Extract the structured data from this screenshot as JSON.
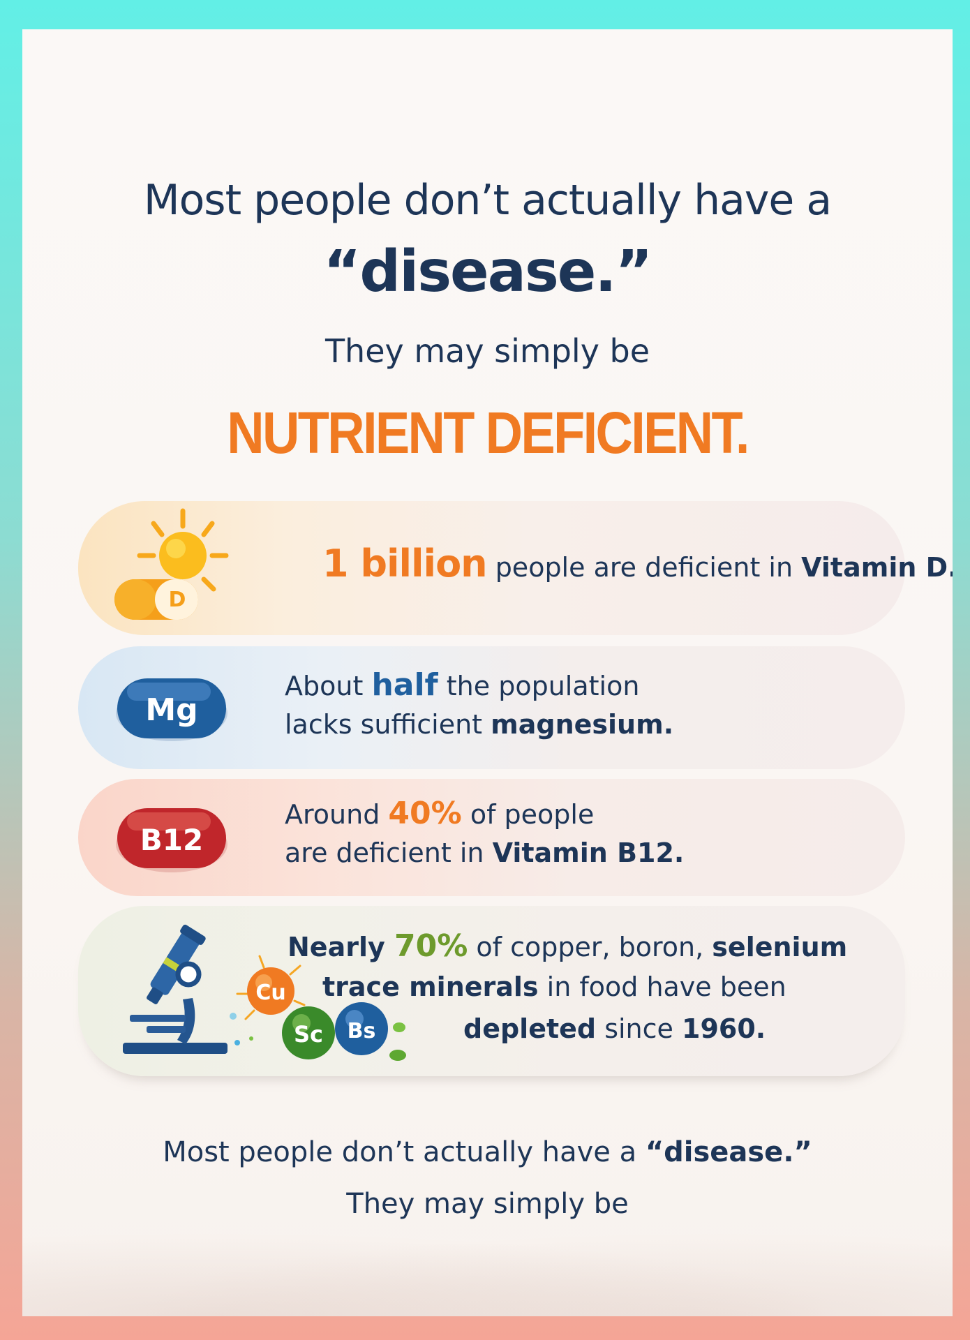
{
  "header": {
    "line1": "Most people don’t actually have a",
    "line2": "“disease.”",
    "line3": "They may simply be",
    "line4": "NUTRIENT DEFICIENT."
  },
  "facts": [
    {
      "icon": "sun-vitamin-d-capsule-icon",
      "badge": "D",
      "parts": [
        "1 billion",
        " people are deficient in ",
        "Vitamin D."
      ]
    },
    {
      "icon": "magnesium-pill-icon",
      "badge": "Mg",
      "line1": [
        "About ",
        "half",
        " the population"
      ],
      "line2": [
        "lacks sufficient ",
        "magnesium."
      ]
    },
    {
      "icon": "b12-pill-icon",
      "badge": "B12",
      "line1": [
        "Around ",
        "40%",
        " of people"
      ],
      "line2": [
        "are deficient in ",
        "Vitamin B12."
      ]
    },
    {
      "icon": "microscope-icon",
      "badges": [
        "Cu",
        "Sc",
        "Bs"
      ],
      "line1": [
        "Nearly ",
        "70%",
        " of copper, boron, ",
        "selenium"
      ],
      "line2": [
        "trace minerals",
        " in food have been"
      ],
      "line3": [
        "depleted",
        " since ",
        "1960."
      ]
    }
  ],
  "footer": {
    "line1_a": "Most people don’t actually have a ",
    "line1_b": "“disease.”",
    "line2": "They may simply be"
  },
  "colors": {
    "navy": "#1d3557",
    "orange": "#f07a22",
    "blue": "#1f5f9e",
    "green": "#6d9a2c",
    "red": "#c0262b"
  }
}
